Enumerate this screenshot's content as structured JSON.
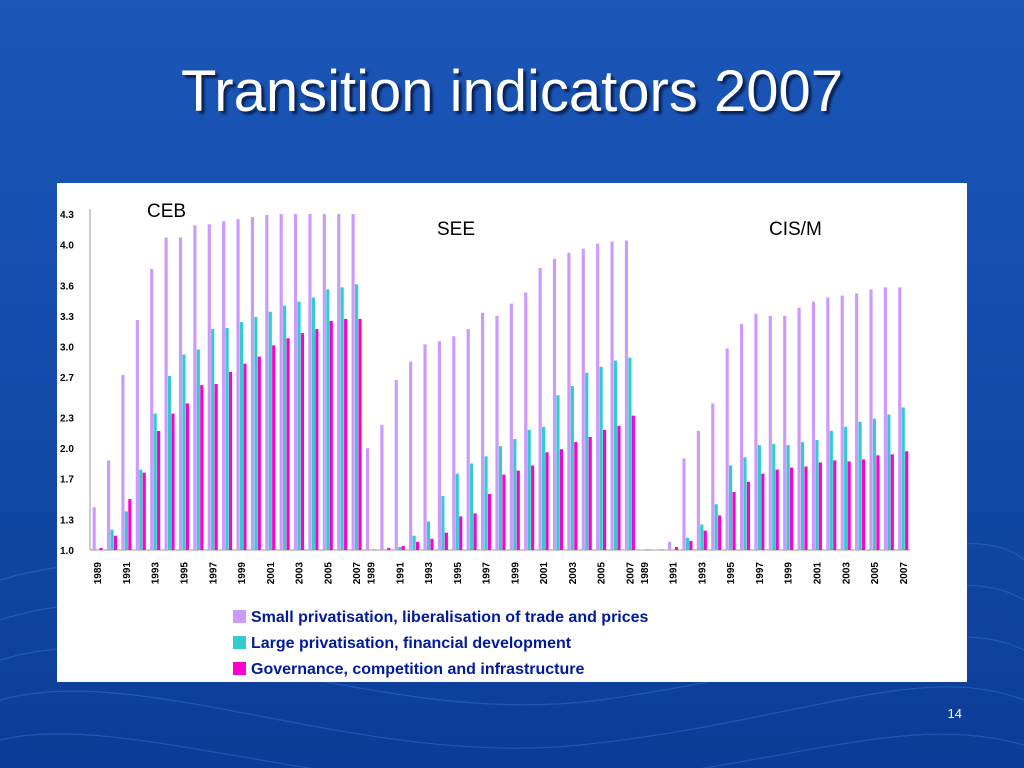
{
  "slide": {
    "title": "Transition indicators 2007",
    "page_number": "14"
  },
  "colors": {
    "background": "#1552b2",
    "small_privatisation": "#cc99ff",
    "large_privatisation": "#33cccc",
    "governance": "#ff00cc"
  },
  "chart_data": {
    "type": "bar",
    "panels": [
      "CEB",
      "SEE",
      "CIS/M"
    ],
    "x": [
      "1989",
      "1990",
      "1991",
      "1992",
      "1993",
      "1994",
      "1995",
      "1996",
      "1997",
      "1998",
      "1999",
      "2000",
      "2001",
      "2002",
      "2003",
      "2004",
      "2005",
      "2006",
      "2007"
    ],
    "x_tick_labels": [
      "1989",
      "1991",
      "1993",
      "1995",
      "1997",
      "1999",
      "2001",
      "2003",
      "2005",
      "2007"
    ],
    "y_tick_labels": [
      "1.0",
      "1.3",
      "1.7",
      "2.0",
      "2.3",
      "2.7",
      "3.0",
      "3.3",
      "3.6",
      "4.0",
      "4.3"
    ],
    "ylim": [
      1.0,
      4.33
    ],
    "grid": false,
    "legend_position": "bottom",
    "series_names": [
      "Small privatisation, liberalisation of trade and prices",
      "Large privatisation, financial development",
      "Governance, competition and infrastructure"
    ],
    "groups": [
      {
        "panel": "CEB",
        "series": [
          {
            "name": "Small privatisation, liberalisation of trade and prices",
            "values": [
              1.42,
              1.88,
              2.72,
              3.26,
              3.76,
              4.07,
              4.07,
              4.19,
              4.2,
              4.23,
              4.25,
              4.27,
              4.29,
              4.3,
              4.3,
              4.3,
              4.3,
              4.3,
              4.3
            ]
          },
          {
            "name": "Large privatisation, financial development",
            "values": [
              1.0,
              1.2,
              1.38,
              1.79,
              2.34,
              2.71,
              2.92,
              2.97,
              3.17,
              3.18,
              3.24,
              3.29,
              3.34,
              3.4,
              3.44,
              3.48,
              3.56,
              3.58,
              3.61
            ]
          },
          {
            "name": "Governance, competition and infrastructure",
            "values": [
              1.02,
              1.14,
              1.5,
              1.76,
              2.17,
              2.34,
              2.44,
              2.62,
              2.63,
              2.75,
              2.83,
              2.9,
              3.01,
              3.08,
              3.13,
              3.17,
              3.25,
              3.27,
              3.27
            ]
          }
        ]
      },
      {
        "panel": "SEE",
        "series": [
          {
            "name": "Small privatisation, liberalisation of trade and prices",
            "values": [
              2.0,
              2.23,
              2.67,
              2.85,
              3.02,
              3.05,
              3.1,
              3.17,
              3.33,
              3.3,
              3.42,
              3.53,
              3.77,
              3.86,
              3.92,
              3.96,
              4.01,
              4.03,
              4.04
            ]
          },
          {
            "name": "Large privatisation, financial development",
            "values": [
              1.0,
              1.0,
              1.03,
              1.14,
              1.28,
              1.53,
              1.75,
              1.85,
              1.92,
              2.02,
              2.09,
              2.18,
              2.21,
              2.52,
              2.61,
              2.74,
              2.8,
              2.86,
              2.89
            ]
          },
          {
            "name": "Governance, competition and infrastructure",
            "values": [
              1.0,
              1.02,
              1.04,
              1.08,
              1.11,
              1.17,
              1.33,
              1.36,
              1.55,
              1.74,
              1.78,
              1.83,
              1.96,
              1.99,
              2.06,
              2.11,
              2.18,
              2.22,
              2.32
            ]
          }
        ]
      },
      {
        "panel": "CIS/M",
        "series": [
          {
            "name": "Small privatisation, liberalisation of trade and prices",
            "values": [
              1.0,
              1.0,
              1.08,
              1.9,
              2.17,
              2.44,
              2.98,
              3.22,
              3.32,
              3.3,
              3.3,
              3.38,
              3.44,
              3.48,
              3.5,
              3.52,
              3.56,
              3.58,
              3.58
            ]
          },
          {
            "name": "Large privatisation, financial development",
            "values": [
              1.0,
              1.0,
              1.0,
              1.12,
              1.25,
              1.45,
              1.83,
              1.91,
              2.03,
              2.04,
              2.03,
              2.06,
              2.08,
              2.17,
              2.21,
              2.26,
              2.29,
              2.33,
              2.4
            ]
          },
          {
            "name": "Governance, competition and infrastructure",
            "values": [
              1.0,
              1.0,
              1.03,
              1.09,
              1.19,
              1.34,
              1.57,
              1.67,
              1.75,
              1.79,
              1.81,
              1.82,
              1.86,
              1.88,
              1.87,
              1.89,
              1.93,
              1.94,
              1.97
            ]
          }
        ]
      }
    ]
  }
}
